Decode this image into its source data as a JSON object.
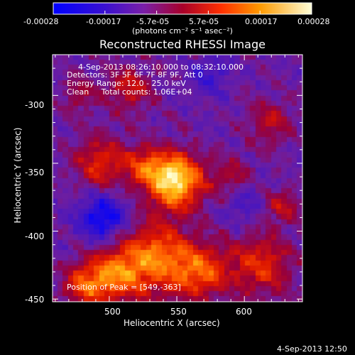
{
  "colorbar": {
    "tick_labels": [
      "-0.00028",
      "-0.00017",
      "-5.7e-05",
      "5.7e-05",
      "0.00017",
      "0.00028"
    ],
    "unit_label": "(photons cm⁻² s⁻¹ asec⁻²)",
    "colors": [
      "#0000ff",
      "#4a00c8",
      "#7d1fb0",
      "#b8002a",
      "#ff4400",
      "#ffb000",
      "#ffffc8"
    ]
  },
  "chart_data": {
    "type": "heatmap",
    "title": "Reconstructed RHESSI Image",
    "xlabel": "Heliocentric X (arcsec)",
    "ylabel": "Heliocentric Y (arcsec)",
    "xlim": [
      458,
      643
    ],
    "ylim": [
      -452,
      -270
    ],
    "x_ticks": [
      500,
      550,
      600
    ],
    "y_ticks": [
      -300,
      -350,
      -400,
      -450
    ],
    "value_range": [
      -0.00028,
      0.00028
    ],
    "annotations": {
      "time_range": "4-Sep-2013 08:26:10.000 to 08:32:10.000",
      "detectors": "Detectors: 3F 5F 6F 7F 8F 9F, Att 0",
      "energy": "Energy Range: 12.0 - 25.0 keV",
      "clean": "Clean     Total counts: 1.06E+04",
      "peak": "Position of Peak = [549,-363]"
    },
    "peak_position": [
      549,
      -363
    ],
    "sources": [
      {
        "x": 549,
        "y": -363,
        "sigma": 14,
        "amp": 1.0
      },
      {
        "x": 535,
        "y": -420,
        "sigma": 18,
        "amp": 0.65
      },
      {
        "x": 505,
        "y": -432,
        "sigma": 14,
        "amp": 0.55
      },
      {
        "x": 568,
        "y": -430,
        "sigma": 14,
        "amp": 0.55
      },
      {
        "x": 612,
        "y": -425,
        "sigma": 16,
        "amp": 0.45
      },
      {
        "x": 495,
        "y": -350,
        "sigma": 14,
        "amp": 0.45
      },
      {
        "x": 527,
        "y": -352,
        "sigma": 10,
        "amp": 0.42
      },
      {
        "x": 483,
        "y": -440,
        "sigma": 12,
        "amp": 0.5
      },
      {
        "x": 515,
        "y": -295,
        "sigma": 12,
        "amp": 0.35
      },
      {
        "x": 620,
        "y": -320,
        "sigma": 12,
        "amp": 0.3
      },
      {
        "x": 628,
        "y": -382,
        "sigma": 9,
        "amp": 0.32
      },
      {
        "x": 590,
        "y": -360,
        "sigma": 10,
        "amp": 0.28
      },
      {
        "x": 478,
        "y": -300,
        "sigma": 9,
        "amp": 0.25
      }
    ],
    "negative_sources": [
      {
        "x": 495,
        "y": -390,
        "sigma": 12,
        "amp": -0.55
      },
      {
        "x": 575,
        "y": -285,
        "sigma": 10,
        "amp": -0.25
      },
      {
        "x": 600,
        "y": -380,
        "sigma": 10,
        "amp": -0.2
      }
    ]
  },
  "footer": {
    "timestamp": "4-Sep-2013 12:50"
  }
}
